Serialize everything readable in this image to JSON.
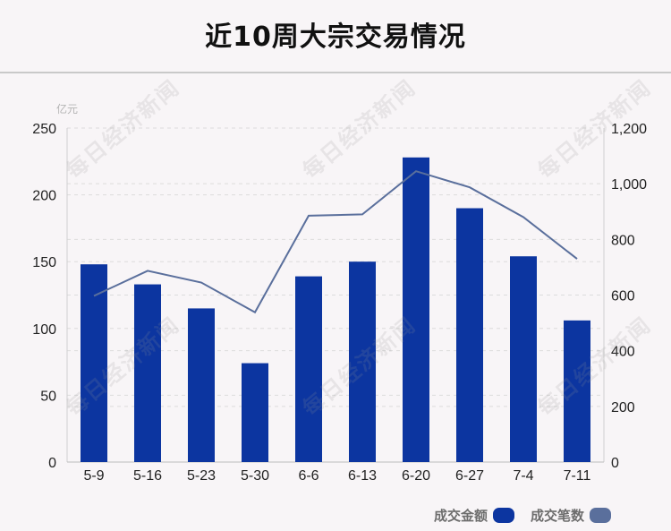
{
  "title": "近10周大宗交易情况",
  "watermark": "每日经济新闻",
  "colors": {
    "bar": "#0c35a0",
    "line": "#5a6f9c",
    "grid": "#dcdcdc"
  },
  "legend": [
    {
      "label": "成交金额",
      "color": "#0c35a0"
    },
    {
      "label": "成交笔数",
      "color": "#5a6f9c"
    }
  ],
  "chart_data": {
    "type": "bar+line",
    "categories": [
      "5-9",
      "5-16",
      "5-23",
      "5-30",
      "6-6",
      "6-13",
      "6-20",
      "6-27",
      "7-4",
      "7-11"
    ],
    "series": [
      {
        "name": "成交金额",
        "type": "bar",
        "axis": "left",
        "values": [
          148,
          133,
          115,
          74,
          139,
          150,
          228,
          190,
          154,
          106
        ]
      },
      {
        "name": "成交笔数",
        "type": "line",
        "axis": "right",
        "values": [
          597,
          687,
          645,
          538,
          885,
          890,
          1045,
          987,
          880,
          730
        ]
      }
    ],
    "left_axis": {
      "unit": "亿元",
      "min": 0,
      "max": 250,
      "ticks": [
        "0",
        "50",
        "100",
        "150",
        "200",
        "250"
      ]
    },
    "right_axis": {
      "min": 0,
      "max": 1200,
      "ticks": [
        "0",
        "200",
        "400",
        "600",
        "800",
        "1,000",
        "1,200"
      ]
    },
    "grid": true,
    "legend_position": "bottom-right"
  }
}
